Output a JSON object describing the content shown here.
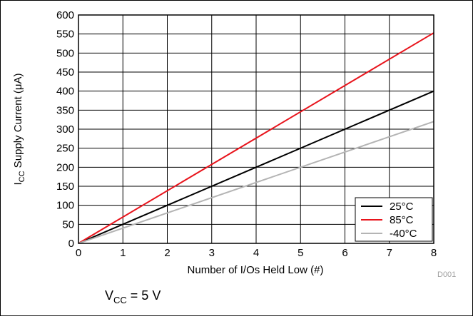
{
  "chart_data": {
    "type": "line",
    "title": "",
    "xlabel": "Number of I/Os Held Low (#)",
    "ylabel": {
      "main": "I",
      "sub": "CC",
      "rest": " Supply Current (μA)"
    },
    "xlim": [
      0,
      8
    ],
    "ylim": [
      0,
      600
    ],
    "xticks": [
      0,
      1,
      2,
      3,
      4,
      5,
      6,
      7,
      8
    ],
    "yticks": [
      0,
      50,
      100,
      150,
      200,
      250,
      300,
      350,
      400,
      450,
      500,
      550,
      600
    ],
    "grid": true,
    "legend_position": "bottom-right",
    "series": [
      {
        "name": "25°C",
        "color": "#000000",
        "x": [
          0,
          8
        ],
        "y": [
          0,
          400
        ]
      },
      {
        "name": "85°C",
        "color": "#e8141c",
        "x": [
          0,
          8
        ],
        "y": [
          0,
          553
        ]
      },
      {
        "name": "-40°C",
        "color": "#b4b4b4",
        "x": [
          0,
          8
        ],
        "y": [
          0,
          320
        ]
      }
    ]
  },
  "figure_id": "D001",
  "condition": {
    "main": "V",
    "sub": "CC",
    "rest": " = 5 V"
  }
}
